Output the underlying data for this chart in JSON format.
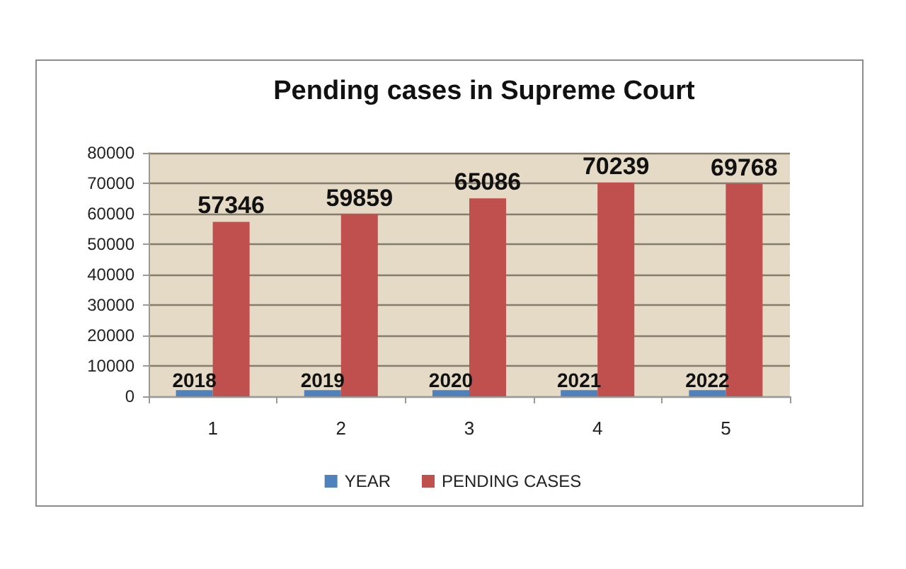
{
  "chart_data": {
    "type": "bar",
    "title": "Pending cases in Supreme Court",
    "categories": [
      "1",
      "2",
      "3",
      "4",
      "5"
    ],
    "series": [
      {
        "name": "YEAR",
        "color": "#4f81bd",
        "values": [
          2018,
          2019,
          2020,
          2021,
          2022
        ]
      },
      {
        "name": "PENDING CASES",
        "color": "#c0504d",
        "values": [
          57346,
          59859,
          65086,
          70239,
          69768
        ]
      }
    ],
    "ylim": [
      0,
      80000
    ],
    "yticks": [
      0,
      10000,
      20000,
      30000,
      40000,
      50000,
      60000,
      70000,
      80000
    ],
    "grid": "y",
    "legend": "bottom",
    "data_labels": true
  }
}
